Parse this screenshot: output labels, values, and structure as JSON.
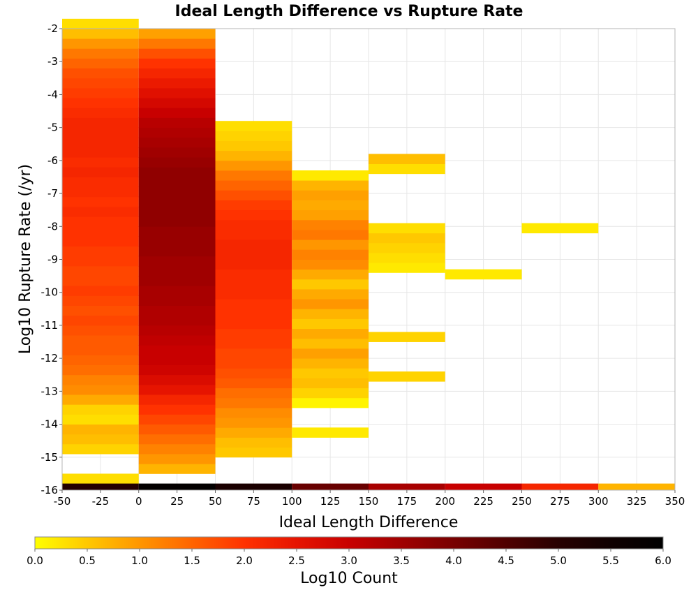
{
  "chart_data": {
    "type": "heatmap",
    "title": "Ideal Length Difference vs Rupture Rate",
    "xlabel": "Ideal Length Difference",
    "ylabel": "Log10 Rupture Rate (/yr)",
    "xlim": [
      -50,
      350
    ],
    "ylim": [
      -16,
      -2
    ],
    "x_ticks": [
      -50,
      -25,
      0,
      25,
      50,
      75,
      100,
      125,
      150,
      175,
      200,
      225,
      250,
      275,
      300,
      325,
      350
    ],
    "x_tick_labels": [
      "-50",
      "-25",
      "0",
      "25",
      "50",
      "75",
      "100",
      "125",
      "150",
      "175",
      "200",
      "225",
      "250",
      "275",
      "300",
      "325",
      "350"
    ],
    "y_ticks": [
      -2,
      -3,
      -4,
      -5,
      -6,
      -7,
      -8,
      -9,
      -10,
      -11,
      -12,
      -13,
      -14,
      -15,
      -16
    ],
    "y_tick_labels": [
      "-2",
      "-3",
      "-4",
      "-5",
      "-6",
      "-7",
      "-8",
      "-9",
      "-10",
      "-11",
      "-12",
      "-13",
      "-14",
      "-15",
      "-16"
    ],
    "grid": true,
    "x_bin_width": 50,
    "y_bin_height": 0.3,
    "summary_row": {
      "y_range": [
        -16,
        -15.8
      ],
      "cells": [
        {
          "x": -50,
          "value": 5.1
        },
        {
          "x": 0,
          "value": 5.9
        },
        {
          "x": 50,
          "value": 5.3
        },
        {
          "x": 100,
          "value": 4.2
        },
        {
          "x": 150,
          "value": 3.4
        },
        {
          "x": 200,
          "value": 3.0
        },
        {
          "x": 250,
          "value": 2.2
        },
        {
          "x": 300,
          "value": 0.7
        }
      ]
    },
    "columns": [
      {
        "x": -50,
        "y_start": -15.8,
        "values": [
          0.3,
          null,
          null,
          0.4,
          0.6,
          0.7,
          0.3,
          0.4,
          0.8,
          1.1,
          1.2,
          1.4,
          1.5,
          1.6,
          1.6,
          1.7,
          1.8,
          1.7,
          1.8,
          1.9,
          1.8,
          1.8,
          1.9,
          1.9,
          2.0,
          2.0,
          2.0,
          2.1,
          2.0,
          2.1,
          2.1,
          2.2,
          2.1,
          2.2,
          2.2,
          2.2,
          2.2,
          2.1,
          2.0,
          1.9,
          1.8,
          1.7,
          1.5,
          1.3,
          1.0,
          0.6,
          0.3
        ]
      },
      {
        "x": 0,
        "y_start": -15.5,
        "values": [
          0.7,
          1.0,
          1.2,
          1.4,
          1.6,
          1.8,
          2.0,
          2.2,
          2.5,
          2.7,
          2.9,
          3.0,
          3.0,
          3.1,
          3.2,
          3.3,
          3.3,
          3.4,
          3.4,
          3.5,
          3.5,
          3.5,
          3.6,
          3.6,
          3.6,
          3.7,
          3.7,
          3.7,
          3.7,
          3.7,
          3.7,
          3.6,
          3.5,
          3.4,
          3.3,
          3.2,
          3.0,
          2.8,
          2.6,
          2.4,
          2.2,
          2.0,
          1.7,
          1.3,
          0.9
        ]
      },
      {
        "x": 50,
        "y_start": -15.0,
        "values": [
          0.5,
          0.6,
          0.8,
          1.0,
          1.1,
          1.3,
          1.4,
          1.6,
          1.7,
          1.8,
          1.8,
          1.9,
          1.9,
          2.0,
          2.0,
          2.0,
          2.1,
          2.1,
          2.1,
          2.2,
          2.2,
          2.2,
          2.1,
          2.1,
          2.0,
          1.9,
          1.7,
          1.5,
          1.3,
          1.0,
          0.7,
          0.5,
          0.4,
          0.3
        ]
      },
      {
        "x": 100,
        "y_start": -14.4,
        "values": [
          0.2,
          null,
          null,
          0.1,
          0.4,
          0.6,
          0.5,
          0.7,
          0.9,
          0.6,
          0.8,
          0.5,
          0.7,
          1.0,
          0.8,
          0.5,
          0.8,
          1.1,
          1.2,
          1.0,
          1.3,
          1.2,
          0.9,
          0.8,
          0.9,
          0.7,
          0.2
        ]
      },
      {
        "x": 150,
        "y_start": -12.7,
        "values": [
          0.4,
          null,
          null,
          null,
          0.4,
          null,
          null,
          null,
          null,
          null,
          null,
          0.2,
          0.3,
          0.4,
          0.5,
          0.3,
          null,
          null,
          null,
          null,
          null,
          0.3,
          0.6
        ]
      },
      {
        "x": 200,
        "y_start": -9.6,
        "values": [
          0.2
        ]
      },
      {
        "x": 250,
        "y_start": -8.2,
        "values": [
          0.2
        ]
      }
    ],
    "colorbar": {
      "label": "Log10 Count",
      "range": [
        0.0,
        6.0
      ],
      "ticks": [
        0.0,
        0.5,
        1.0,
        1.5,
        2.0,
        2.5,
        3.0,
        3.5,
        4.0,
        4.5,
        5.0,
        5.5,
        6.0
      ],
      "tick_labels": [
        "0.0",
        "0.5",
        "1.0",
        "1.5",
        "2.0",
        "2.5",
        "3.0",
        "3.5",
        "4.0",
        "4.5",
        "5.0",
        "5.5",
        "6.0"
      ],
      "colors": [
        "#ffff00",
        "#ffc800",
        "#ff9600",
        "#ff6400",
        "#ff3200",
        "#e61400",
        "#c80000",
        "#a00000",
        "#780000",
        "#500000",
        "#280000",
        "#100000",
        "#000000"
      ]
    }
  }
}
